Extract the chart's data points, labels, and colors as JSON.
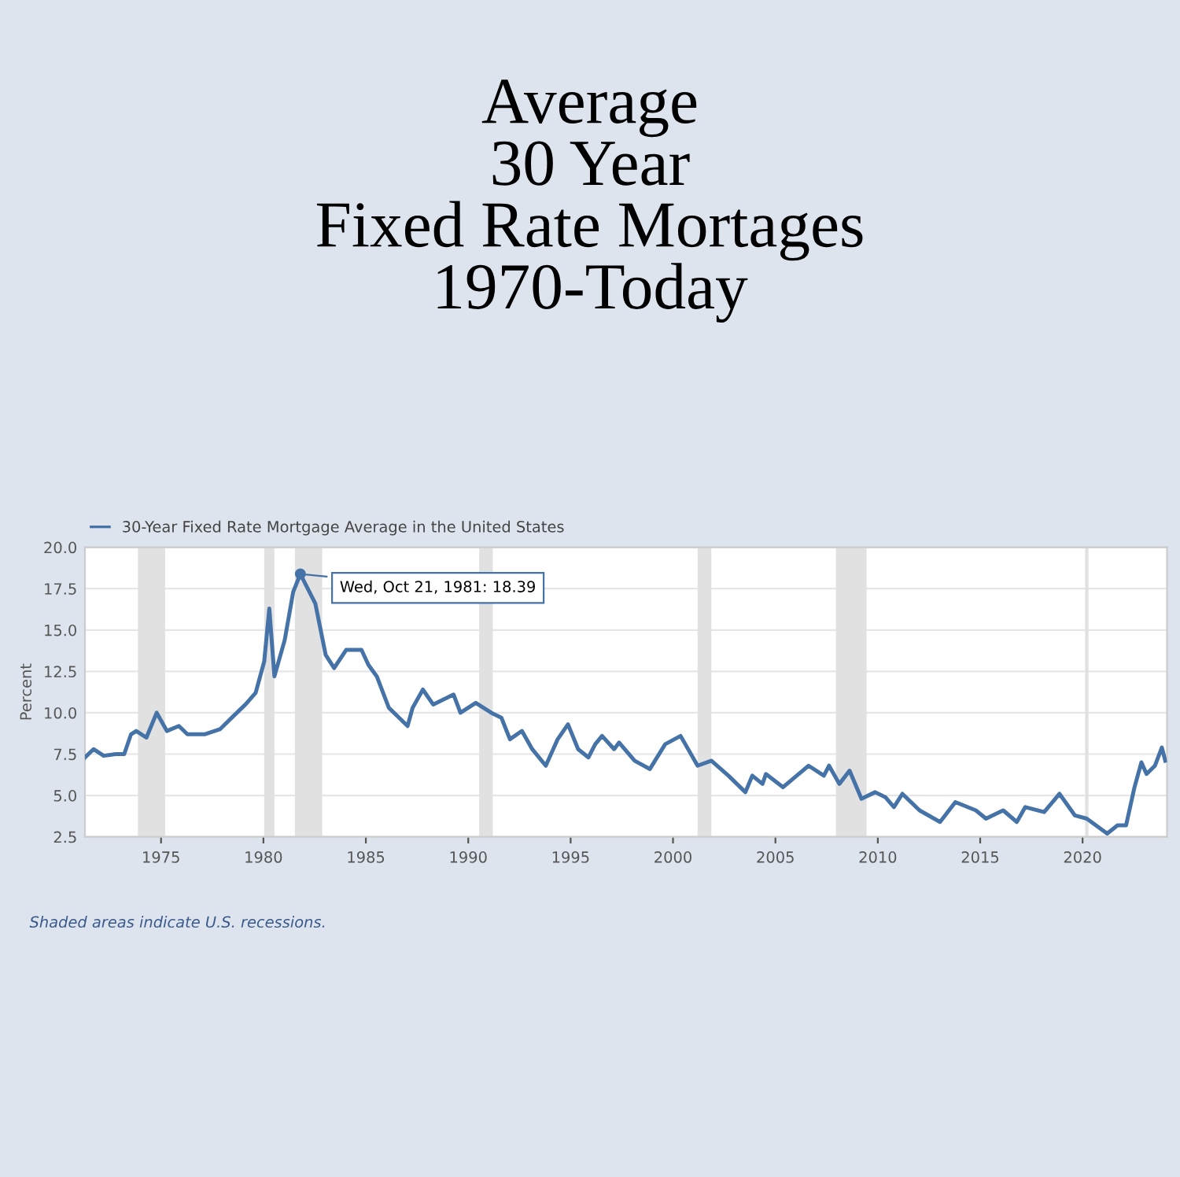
{
  "chart_data": {
    "type": "line",
    "title": "Average\n30 Year\nFixed Rate Mortages\n1970-Today",
    "ylabel": "Percent",
    "x": [
      "1971-04",
      "1971-09",
      "1972-03",
      "1972-10",
      "1973-03",
      "1973-07",
      "1973-10",
      "1974-04",
      "1974-10",
      "1975-04",
      "1975-11",
      "1976-04",
      "1977-02",
      "1977-11",
      "1978-07",
      "1979-02",
      "1979-08",
      "1980-01",
      "1980-04",
      "1980-07",
      "1981-01",
      "1981-06",
      "1981-10-21",
      "1982-02",
      "1982-07",
      "1983-01",
      "1983-06",
      "1984-01",
      "1984-10",
      "1985-02",
      "1985-07",
      "1986-02",
      "1987-01",
      "1987-04",
      "1987-10",
      "1988-04",
      "1989-04",
      "1989-08",
      "1990-05",
      "1991-02",
      "1991-08",
      "1992-01",
      "1992-08",
      "1993-02",
      "1993-10",
      "1994-05",
      "1994-11",
      "1995-05",
      "1995-11",
      "1996-03",
      "1996-07",
      "1997-02",
      "1997-05",
      "1998-02",
      "1998-11",
      "1999-08",
      "2000-05",
      "2001-03",
      "2001-11",
      "2002-09",
      "2003-07",
      "2003-11",
      "2004-05",
      "2004-07",
      "2005-05",
      "2006-08",
      "2007-05",
      "2007-08",
      "2008-02",
      "2008-08",
      "2009-03",
      "2009-11",
      "2010-05",
      "2010-10",
      "2011-03",
      "2012-01",
      "2013-01",
      "2013-10",
      "2014-10",
      "2015-04",
      "2016-02",
      "2016-10",
      "2017-03",
      "2018-02",
      "2018-11",
      "2019-08",
      "2020-03",
      "2021-03",
      "2021-09",
      "2022-02",
      "2022-07",
      "2022-11",
      "2023-02",
      "2023-07",
      "2023-11",
      "2024-01"
    ],
    "series": [
      {
        "name": "30-Year Fixed Rate Mortgage Average in the United States",
        "color": "#4572a7",
        "values": [
          7.3,
          7.8,
          7.4,
          7.5,
          7.5,
          8.7,
          8.9,
          8.5,
          10.0,
          8.9,
          9.2,
          8.7,
          8.7,
          9.0,
          9.8,
          10.5,
          11.2,
          13.1,
          16.3,
          12.2,
          14.4,
          17.3,
          18.39,
          17.6,
          16.6,
          13.5,
          12.7,
          13.8,
          13.8,
          12.9,
          12.2,
          10.3,
          9.2,
          10.3,
          11.4,
          10.5,
          11.1,
          10.0,
          10.6,
          10.0,
          9.7,
          8.4,
          8.9,
          7.8,
          6.8,
          8.4,
          9.3,
          7.8,
          7.3,
          8.1,
          8.6,
          7.8,
          8.2,
          7.1,
          6.6,
          8.1,
          8.6,
          6.8,
          7.1,
          6.2,
          5.2,
          6.2,
          5.7,
          6.3,
          5.5,
          6.8,
          6.2,
          6.8,
          5.7,
          6.5,
          4.8,
          5.2,
          4.9,
          4.3,
          5.1,
          4.1,
          3.4,
          4.6,
          4.1,
          3.6,
          4.1,
          3.4,
          4.3,
          4.0,
          5.1,
          3.8,
          3.6,
          2.7,
          3.2,
          3.2,
          5.5,
          7.0,
          6.3,
          6.8,
          7.9,
          7.1
        ]
      }
    ],
    "xlim": [
      "1971-04",
      "2024-02"
    ],
    "xticks": [
      {
        "value": "1975-01-01",
        "label": "1975"
      },
      {
        "value": "1980-01-01",
        "label": "1980"
      },
      {
        "value": "1985-01-01",
        "label": "1985"
      },
      {
        "value": "1990-01-01",
        "label": "1990"
      },
      {
        "value": "1995-01-01",
        "label": "1995"
      },
      {
        "value": "2000-01-01",
        "label": "2000"
      },
      {
        "value": "2005-01-01",
        "label": "2005"
      },
      {
        "value": "2010-01-01",
        "label": "2010"
      },
      {
        "value": "2015-01-01",
        "label": "2015"
      },
      {
        "value": "2020-01-01",
        "label": "2020"
      }
    ],
    "ylim": [
      2.5,
      20.0
    ],
    "yticks": [
      {
        "value": 2.5,
        "label": "2.5"
      },
      {
        "value": 5.0,
        "label": "5.0"
      },
      {
        "value": 7.5,
        "label": "7.5"
      },
      {
        "value": 10.0,
        "label": "10.0"
      },
      {
        "value": 12.5,
        "label": "12.5"
      },
      {
        "value": 15.0,
        "label": "15.0"
      },
      {
        "value": 17.5,
        "label": "17.5"
      },
      {
        "value": 20.0,
        "label": "20.0"
      }
    ],
    "bands": [
      {
        "axis": "x",
        "from": "1973-11",
        "to": "1975-03",
        "color": "#e1e1e1"
      },
      {
        "axis": "x",
        "from": "1980-01",
        "to": "1980-07",
        "color": "#e1e1e1"
      },
      {
        "axis": "x",
        "from": "1981-07",
        "to": "1982-11",
        "color": "#e1e1e1"
      },
      {
        "axis": "x",
        "from": "1990-07",
        "to": "1991-03",
        "color": "#e1e1e1"
      },
      {
        "axis": "x",
        "from": "2001-03",
        "to": "2001-11",
        "color": "#e1e1e1"
      },
      {
        "axis": "x",
        "from": "2007-12",
        "to": "2009-06",
        "color": "#e1e1e1"
      },
      {
        "axis": "x",
        "from": "2020-02",
        "to": "2020-04",
        "color": "#e1e1e1"
      }
    ],
    "annotations": [
      {
        "text": "Wed, Oct 21, 1981: 18.39",
        "x": "1981-10-21",
        "y": 18.39
      },
      "Shaded areas indicate U.S. recessions."
    ],
    "grid": "y",
    "legend": "top left",
    "marker": "none",
    "line_style": "solid"
  }
}
